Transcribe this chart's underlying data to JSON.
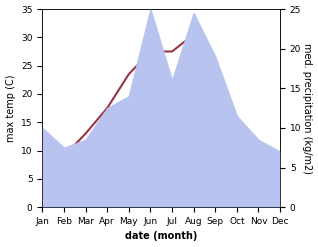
{
  "months": [
    "Jan",
    "Feb",
    "Mar",
    "Apr",
    "May",
    "Jun",
    "Jul",
    "Aug",
    "Sep",
    "Oct",
    "Nov",
    "Dec"
  ],
  "temp": [
    8.5,
    9.0,
    13.0,
    17.5,
    23.5,
    27.5,
    27.5,
    30.5,
    22.0,
    15.5,
    10.5,
    7.5
  ],
  "precip": [
    10.0,
    7.5,
    8.5,
    12.5,
    14.0,
    25.0,
    16.0,
    24.5,
    19.0,
    11.5,
    8.5,
    7.0
  ],
  "temp_color": "#993344",
  "precip_fill_color": "#b8c4ef",
  "ylabel_left": "max temp (C)",
  "ylabel_right": "med. precipitation (kg/m2)",
  "xlabel": "date (month)",
  "ylim_left": [
    0,
    35
  ],
  "ylim_right": [
    0,
    25
  ],
  "yticks_left": [
    0,
    5,
    10,
    15,
    20,
    25,
    30,
    35
  ],
  "yticks_right": [
    0,
    5,
    10,
    15,
    20,
    25
  ],
  "bg_color": "#ffffff",
  "label_fontsize": 7,
  "tick_fontsize": 6.5
}
